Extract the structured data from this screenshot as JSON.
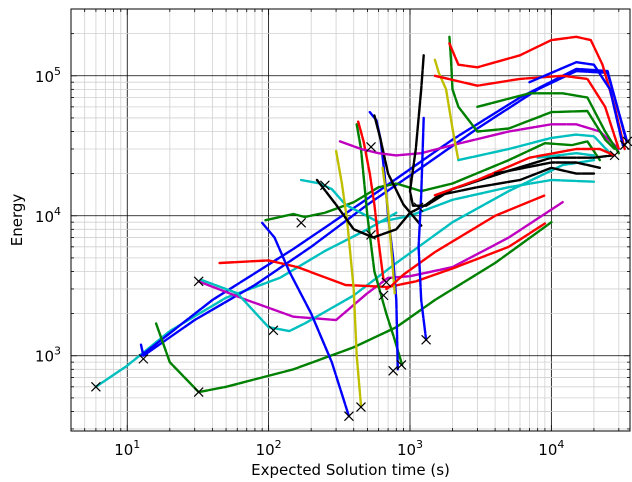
{
  "chart_data": {
    "type": "line",
    "xscale": "log",
    "yscale": "log",
    "xlim": [
      4,
      36000
    ],
    "ylim": [
      290,
      300000
    ],
    "xlabel": "Expected Solution time (s)",
    "ylabel": "Energy",
    "x_ticks": [
      {
        "value": 10,
        "base": "10",
        "exp": "1"
      },
      {
        "value": 100,
        "base": "10",
        "exp": "2"
      },
      {
        "value": 1000,
        "base": "10",
        "exp": "3"
      },
      {
        "value": 10000,
        "base": "10",
        "exp": "4"
      }
    ],
    "y_ticks": [
      {
        "value": 1000,
        "base": "10",
        "exp": "3"
      },
      {
        "value": 10000,
        "base": "10",
        "exp": "4"
      },
      {
        "value": 100000,
        "base": "10",
        "exp": "5"
      }
    ],
    "grid": true,
    "colors": {
      "red": "#ff0000",
      "blue": "#0000ff",
      "green": "#008000",
      "black": "#000000",
      "cyan": "#00bfbf",
      "magenta": "#bf00bf",
      "olive": "#bfbf00"
    },
    "series": [
      {
        "color": "#00bfbf",
        "points": [
          [
            6,
            600
          ],
          [
            10,
            850
          ],
          [
            20,
            1500
          ],
          [
            50,
            2600
          ],
          [
            120,
            3600
          ],
          [
            250,
            5600
          ],
          [
            500,
            8000
          ],
          [
            800,
            10500
          ]
        ]
      },
      {
        "color": "#0000ff",
        "points": [
          [
            12.5,
            1200
          ],
          [
            13,
            1000
          ],
          [
            30,
            1800
          ],
          [
            80,
            3200
          ],
          [
            200,
            6000
          ],
          [
            500,
            12000
          ],
          [
            1200,
            22000
          ],
          [
            3000,
            42000
          ],
          [
            8000,
            80000
          ],
          [
            15000,
            108000
          ],
          [
            25000,
            105000
          ],
          [
            34000,
            35000
          ]
        ]
      },
      {
        "color": "#0000ff",
        "points": [
          [
            12.5,
            1000
          ],
          [
            40,
            2500
          ],
          [
            150,
            5800
          ],
          [
            600,
            15000
          ],
          [
            2000,
            35000
          ],
          [
            6000,
            70000
          ],
          [
            15000,
            112000
          ],
          [
            25000,
            108000
          ],
          [
            34000,
            34000
          ]
        ]
      },
      {
        "color": "#008000",
        "points": [
          [
            16,
            1700
          ],
          [
            20,
            900
          ],
          [
            32,
            550
          ],
          [
            50,
            600
          ],
          [
            150,
            800
          ],
          [
            400,
            1150
          ],
          [
            800,
            1600
          ],
          [
            1500,
            2500
          ],
          [
            4000,
            4600
          ],
          [
            10000,
            9000
          ]
        ]
      },
      {
        "color": "#bf00bf",
        "points": [
          [
            32,
            3400
          ],
          [
            70,
            2500
          ],
          [
            150,
            1900
          ],
          [
            300,
            1800
          ],
          [
            500,
            2800
          ],
          [
            700,
            3600
          ],
          [
            1000,
            3700
          ],
          [
            2000,
            4300
          ],
          [
            5000,
            7000
          ],
          [
            12000,
            12500
          ]
        ]
      },
      {
        "color": "#00bfbf",
        "points": [
          [
            33,
            3500
          ],
          [
            60,
            2800
          ],
          [
            100,
            1600
          ],
          [
            140,
            1500
          ],
          [
            180,
            1700
          ],
          [
            400,
            2700
          ],
          [
            800,
            4600
          ],
          [
            2000,
            9000
          ],
          [
            5000,
            15000
          ],
          [
            12000,
            23000
          ],
          [
            20000,
            25000
          ]
        ]
      },
      {
        "color": "#ff0000",
        "points": [
          [
            45,
            4600
          ],
          [
            100,
            4800
          ],
          [
            160,
            4300
          ],
          [
            350,
            3200
          ],
          [
            700,
            3100
          ],
          [
            1100,
            3400
          ],
          [
            2000,
            4200
          ],
          [
            5000,
            6000
          ],
          [
            9000,
            8800
          ]
        ]
      },
      {
        "color": "#008000",
        "points": [
          [
            95,
            9300
          ],
          [
            150,
            10300
          ],
          [
            180,
            9800
          ],
          [
            250,
            10500
          ],
          [
            400,
            12500
          ],
          [
            600,
            16000
          ],
          [
            800,
            17000
          ],
          [
            1200,
            15000
          ],
          [
            2000,
            17000
          ],
          [
            5000,
            25000
          ],
          [
            9000,
            33000
          ],
          [
            14000,
            32000
          ],
          [
            18000,
            34000
          ],
          [
            22000,
            25000
          ]
        ]
      },
      {
        "color": "#0000ff",
        "points": [
          [
            90,
            8900
          ],
          [
            110,
            7000
          ],
          [
            140,
            4000
          ],
          [
            200,
            2000
          ],
          [
            280,
            900
          ],
          [
            370,
            370
          ]
        ]
      },
      {
        "color": "#00bfbf",
        "points": [
          [
            170,
            18000
          ],
          [
            230,
            17000
          ],
          [
            280,
            15500
          ],
          [
            350,
            12000
          ],
          [
            600,
            9000
          ],
          [
            1000,
            10000
          ],
          [
            2000,
            13000
          ],
          [
            5000,
            16000
          ],
          [
            10000,
            18000
          ],
          [
            20000,
            17500
          ]
        ]
      },
      {
        "color": "#bfbf00",
        "points": [
          [
            300,
            29000
          ],
          [
            330,
            17000
          ],
          [
            360,
            9000
          ],
          [
            400,
            3000
          ],
          [
            420,
            1000
          ],
          [
            450,
            440
          ]
        ]
      },
      {
        "color": "#008000",
        "points": [
          [
            420,
            45000
          ],
          [
            450,
            30000
          ],
          [
            500,
            10000
          ],
          [
            560,
            4000
          ],
          [
            680,
            2000
          ],
          [
            780,
            1300
          ],
          [
            880,
            860
          ]
        ]
      },
      {
        "color": "#ff0000",
        "points": [
          [
            430,
            47000
          ],
          [
            470,
            34000
          ],
          [
            520,
            20000
          ],
          [
            560,
            12000
          ],
          [
            600,
            6500
          ],
          [
            650,
            3500
          ]
        ]
      },
      {
        "color": "#0000ff",
        "points": [
          [
            520,
            55000
          ],
          [
            580,
            48000
          ],
          [
            620,
            35000
          ],
          [
            660,
            20000
          ],
          [
            700,
            10000
          ],
          [
            760,
            5000
          ],
          [
            800,
            2500
          ],
          [
            820,
            800
          ]
        ]
      },
      {
        "color": "#000000",
        "points": [
          [
            560,
            52000
          ],
          [
            620,
            35000
          ],
          [
            700,
            20000
          ],
          [
            900,
            12000
          ],
          [
            1200,
            8500
          ]
        ]
      },
      {
        "color": "#bfbf00",
        "points": [
          [
            640,
            22000
          ],
          [
            700,
            11000
          ],
          [
            750,
            4700
          ],
          [
            780,
            2800
          ]
        ]
      },
      {
        "color": "#000000",
        "points": [
          [
            220,
            18000
          ],
          [
            300,
            12000
          ],
          [
            400,
            8000
          ],
          [
            550,
            7000
          ],
          [
            800,
            8000
          ],
          [
            1000,
            10500
          ],
          [
            1300,
            12000
          ],
          [
            1600,
            14000
          ],
          [
            3000,
            16000
          ],
          [
            6000,
            18000
          ],
          [
            10000,
            22000
          ],
          [
            15000,
            20000
          ],
          [
            20000,
            20000
          ]
        ]
      },
      {
        "color": "#ff0000",
        "points": [
          [
            680,
            3000
          ],
          [
            750,
            3200
          ],
          [
            900,
            3800
          ],
          [
            1500,
            5500
          ],
          [
            4000,
            10000
          ],
          [
            9000,
            14000
          ]
        ]
      },
      {
        "color": "#bf00bf",
        "points": [
          [
            320,
            34000
          ],
          [
            450,
            30000
          ],
          [
            600,
            28000
          ],
          [
            800,
            27000
          ],
          [
            1200,
            28000
          ],
          [
            2000,
            32000
          ],
          [
            5000,
            40000
          ],
          [
            10000,
            45000
          ],
          [
            15000,
            45000
          ],
          [
            22000,
            40000
          ],
          [
            30000,
            30000
          ]
        ]
      },
      {
        "color": "#0000ff",
        "points": [
          [
            1250,
            50000
          ],
          [
            1230,
            30000
          ],
          [
            1200,
            14000
          ],
          [
            1150,
            6000
          ],
          [
            1200,
            2500
          ],
          [
            1300,
            1300
          ]
        ]
      },
      {
        "color": "#000000",
        "points": [
          [
            1250,
            140000
          ],
          [
            1200,
            80000
          ],
          [
            1100,
            30000
          ],
          [
            1000,
            15000
          ],
          [
            1050,
            11800
          ],
          [
            1300,
            11800
          ],
          [
            2000,
            15500
          ],
          [
            5000,
            21000
          ],
          [
            10000,
            26000
          ],
          [
            15000,
            26000
          ],
          [
            20000,
            26000
          ],
          [
            27000,
            27000
          ]
        ]
      },
      {
        "color": "#bfbf00",
        "points": [
          [
            1500,
            130000
          ],
          [
            1600,
            105000
          ],
          [
            1800,
            80000
          ],
          [
            2000,
            42000
          ],
          [
            2100,
            32000
          ],
          [
            2200,
            25000
          ]
        ]
      },
      {
        "color": "#008000",
        "points": [
          [
            1900,
            190000
          ],
          [
            1950,
            130000
          ],
          [
            2000,
            80000
          ],
          [
            2200,
            60000
          ],
          [
            3000,
            40000
          ],
          [
            5000,
            42000
          ],
          [
            10000,
            55000
          ],
          [
            18000,
            56000
          ],
          [
            24000,
            35000
          ],
          [
            28000,
            30000
          ]
        ]
      },
      {
        "color": "#ff0000",
        "points": [
          [
            1900,
            170000
          ],
          [
            2200,
            120000
          ],
          [
            3000,
            115000
          ],
          [
            6000,
            140000
          ],
          [
            10000,
            180000
          ],
          [
            15000,
            190000
          ],
          [
            19000,
            180000
          ],
          [
            23000,
            120000
          ],
          [
            28000,
            60000
          ],
          [
            33000,
            30000
          ]
        ]
      },
      {
        "color": "#ff0000",
        "points": [
          [
            1500,
            100000
          ],
          [
            3000,
            85000
          ],
          [
            6000,
            95000
          ],
          [
            12000,
            100000
          ],
          [
            18000,
            95000
          ],
          [
            24000,
            60000
          ],
          [
            30000,
            30000
          ]
        ]
      },
      {
        "color": "#00bfbf",
        "points": [
          [
            2200,
            25000
          ],
          [
            5000,
            30000
          ],
          [
            10000,
            36000
          ],
          [
            15000,
            38000
          ],
          [
            20000,
            37000
          ],
          [
            26000,
            28000
          ]
        ]
      },
      {
        "color": "#008000",
        "points": [
          [
            3000,
            60000
          ],
          [
            7000,
            75000
          ],
          [
            12000,
            75000
          ],
          [
            18000,
            70000
          ],
          [
            24000,
            40000
          ],
          [
            30000,
            28000
          ]
        ]
      },
      {
        "color": "#0000ff",
        "points": [
          [
            7000,
            90000
          ],
          [
            15000,
            125000
          ],
          [
            20000,
            120000
          ],
          [
            26000,
            80000
          ],
          [
            32000,
            32000
          ]
        ]
      },
      {
        "color": "#00bfbf",
        "points": [
          [
            8000,
            26000
          ],
          [
            15000,
            28000
          ],
          [
            20000,
            27000
          ]
        ]
      },
      {
        "color": "#ff0000",
        "points": [
          [
            1500,
            14000
          ],
          [
            3000,
            18000
          ],
          [
            7000,
            26000
          ],
          [
            15000,
            30000
          ],
          [
            22000,
            30000
          ],
          [
            28000,
            27000
          ]
        ]
      },
      {
        "color": "#000000",
        "points": [
          [
            4000,
            20000
          ],
          [
            10000,
            24000
          ],
          [
            15000,
            24000
          ],
          [
            22000,
            22000
          ]
        ]
      }
    ],
    "markers": [
      [
        6,
        600
      ],
      [
        13,
        950
      ],
      [
        32,
        550
      ],
      [
        32,
        3400
      ],
      [
        108,
        1520
      ],
      [
        170,
        8900
      ],
      [
        250,
        16500
      ],
      [
        370,
        370
      ],
      [
        450,
        430
      ],
      [
        530,
        31000
      ],
      [
        530,
        7300
      ],
      [
        650,
        2700
      ],
      [
        680,
        3350
      ],
      [
        760,
        780
      ],
      [
        870,
        860
      ],
      [
        1150,
        11500
      ],
      [
        1300,
        1300
      ],
      [
        28000,
        27000
      ],
      [
        33000,
        32000
      ],
      [
        34500,
        34000
      ]
    ]
  }
}
